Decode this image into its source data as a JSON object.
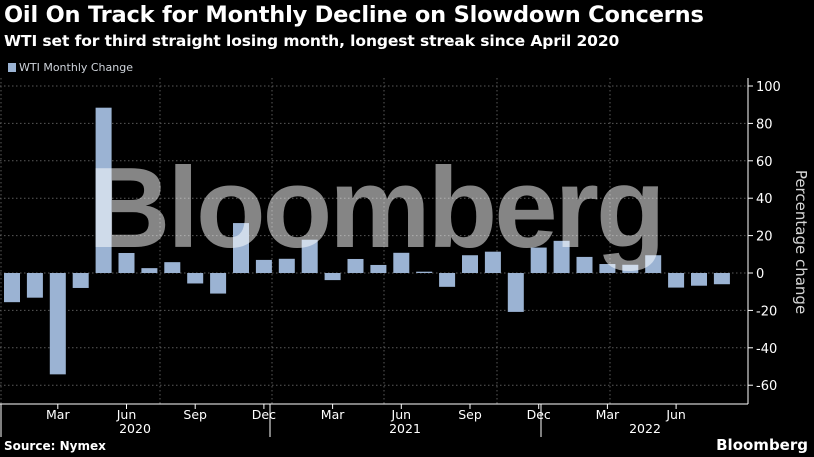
{
  "title": "Oil On Track for Monthly Decline on Slowdown Concerns",
  "subtitle": "WTI set for third straight losing month, longest streak since April 2020",
  "source": "Source: Nymex",
  "brand": "Bloomberg",
  "watermark": "Bloomberg",
  "colors": {
    "background": "#000000",
    "bar": "#9bb3d3",
    "grid": "#5a5a5a",
    "axis": "#ffffff"
  },
  "chart_data": {
    "type": "bar",
    "legend": [
      "WTI Monthly Change"
    ],
    "legend_position": "top-left",
    "ylabel": "Percentage change",
    "ylim": [
      -70,
      100
    ],
    "yticks": [
      100,
      80,
      60,
      40,
      20,
      0,
      -20,
      -40,
      -60
    ],
    "grid": true,
    "x_month_labels": [
      "Mar",
      "Jun",
      "Sep",
      "Dec",
      "Mar",
      "Jun",
      "Sep",
      "Dec",
      "Mar",
      "Jun"
    ],
    "x_year_labels": [
      "2020",
      "2021",
      "2022"
    ],
    "categories": [
      "2020-01",
      "2020-02",
      "2020-03",
      "2020-04",
      "2020-05",
      "2020-06",
      "2020-07",
      "2020-08",
      "2020-09",
      "2020-10",
      "2020-11",
      "2020-12",
      "2021-01",
      "2021-02",
      "2021-03",
      "2021-04",
      "2021-05",
      "2021-06",
      "2021-07",
      "2021-08",
      "2021-09",
      "2021-10",
      "2021-11",
      "2021-12",
      "2022-01",
      "2022-02",
      "2022-03",
      "2022-04",
      "2022-05",
      "2022-06",
      "2022-07",
      "2022-08"
    ],
    "series": [
      {
        "name": "WTI Monthly Change",
        "values": [
          -15.6,
          -13.2,
          -54.2,
          -8.0,
          88.4,
          10.7,
          2.6,
          5.8,
          -5.6,
          -11.0,
          26.7,
          7.0,
          7.6,
          17.8,
          -3.8,
          7.5,
          4.3,
          10.8,
          0.7,
          -7.4,
          9.5,
          11.4,
          -20.8,
          13.6,
          17.2,
          8.6,
          4.8,
          4.4,
          9.5,
          -7.8,
          -6.8,
          -6.0
        ]
      }
    ]
  }
}
